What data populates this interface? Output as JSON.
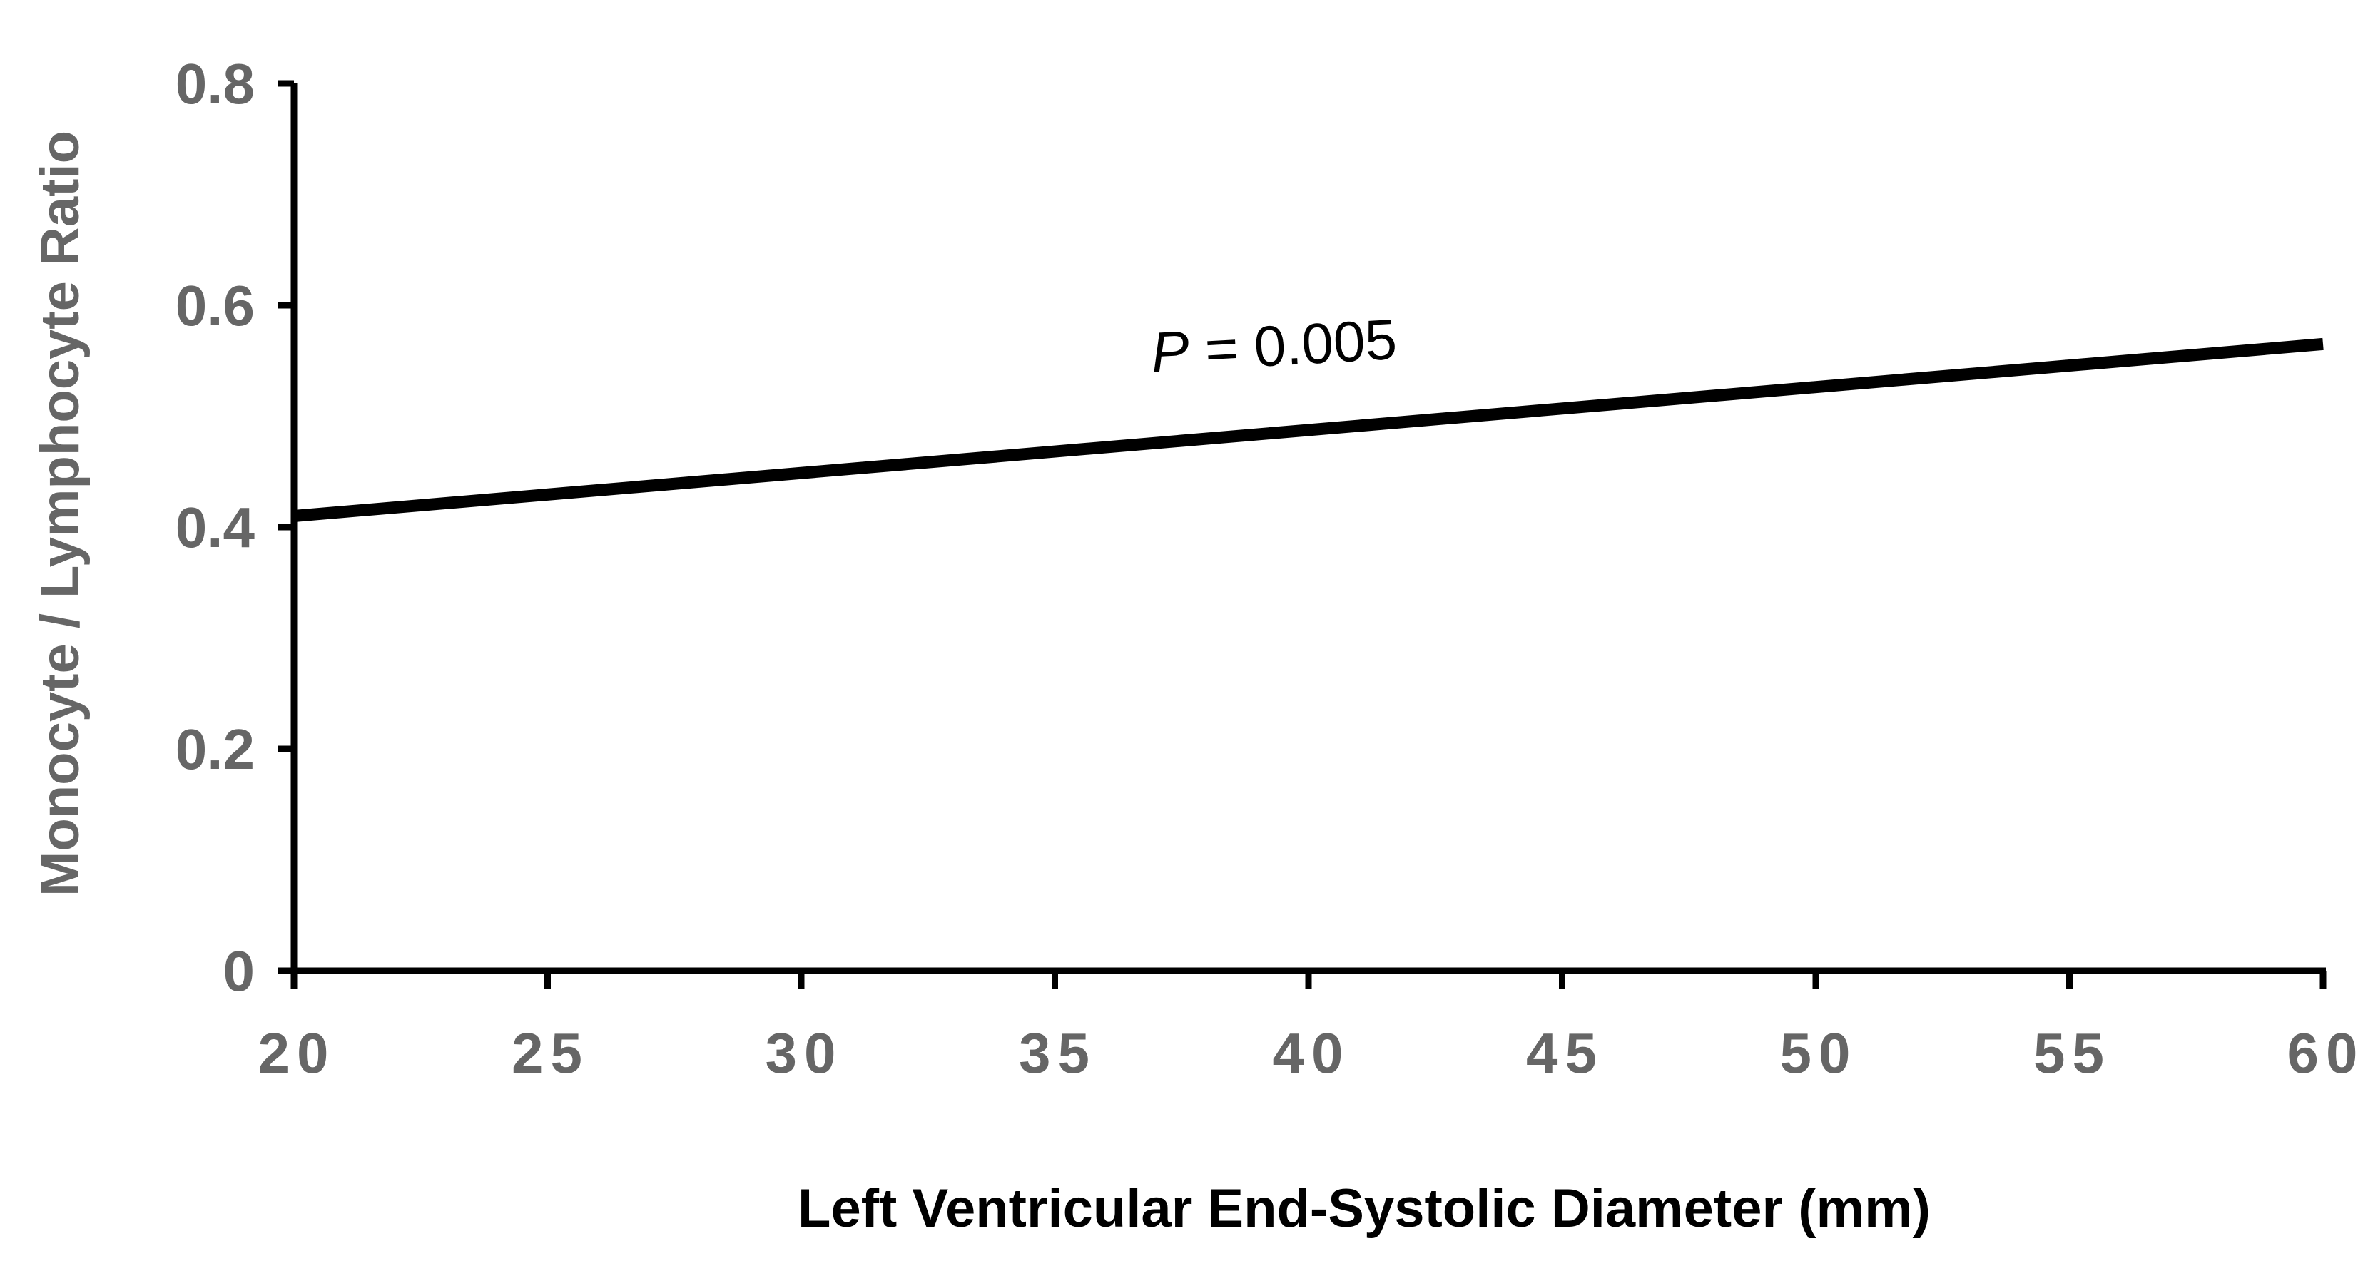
{
  "chart_data": {
    "type": "line",
    "title": "",
    "xlabel": "Left Ventricular End-Systolic Diameter (mm)",
    "ylabel": "Monocyte / Lymphocyte Ratio",
    "xlim": [
      20,
      60
    ],
    "ylim": [
      0,
      0.8
    ],
    "x_ticks": [
      "20",
      "25",
      "30",
      "35",
      "40",
      "45",
      "50",
      "55",
      "60"
    ],
    "y_ticks": [
      "0",
      "0.2",
      "0.4",
      "0.6",
      "0.8"
    ],
    "grid": false,
    "legend": "none",
    "series": [
      {
        "x": [
          20,
          60
        ],
        "y": [
          0.41,
          0.565
        ]
      }
    ],
    "annotations": [
      {
        "prefix": "P",
        "text": " = 0.005"
      }
    ],
    "colors": {
      "line": "#000000",
      "axis": "#000000",
      "tick_text": "#666666",
      "ylabel_text": "#666666",
      "xlabel_text": "#000000"
    }
  }
}
